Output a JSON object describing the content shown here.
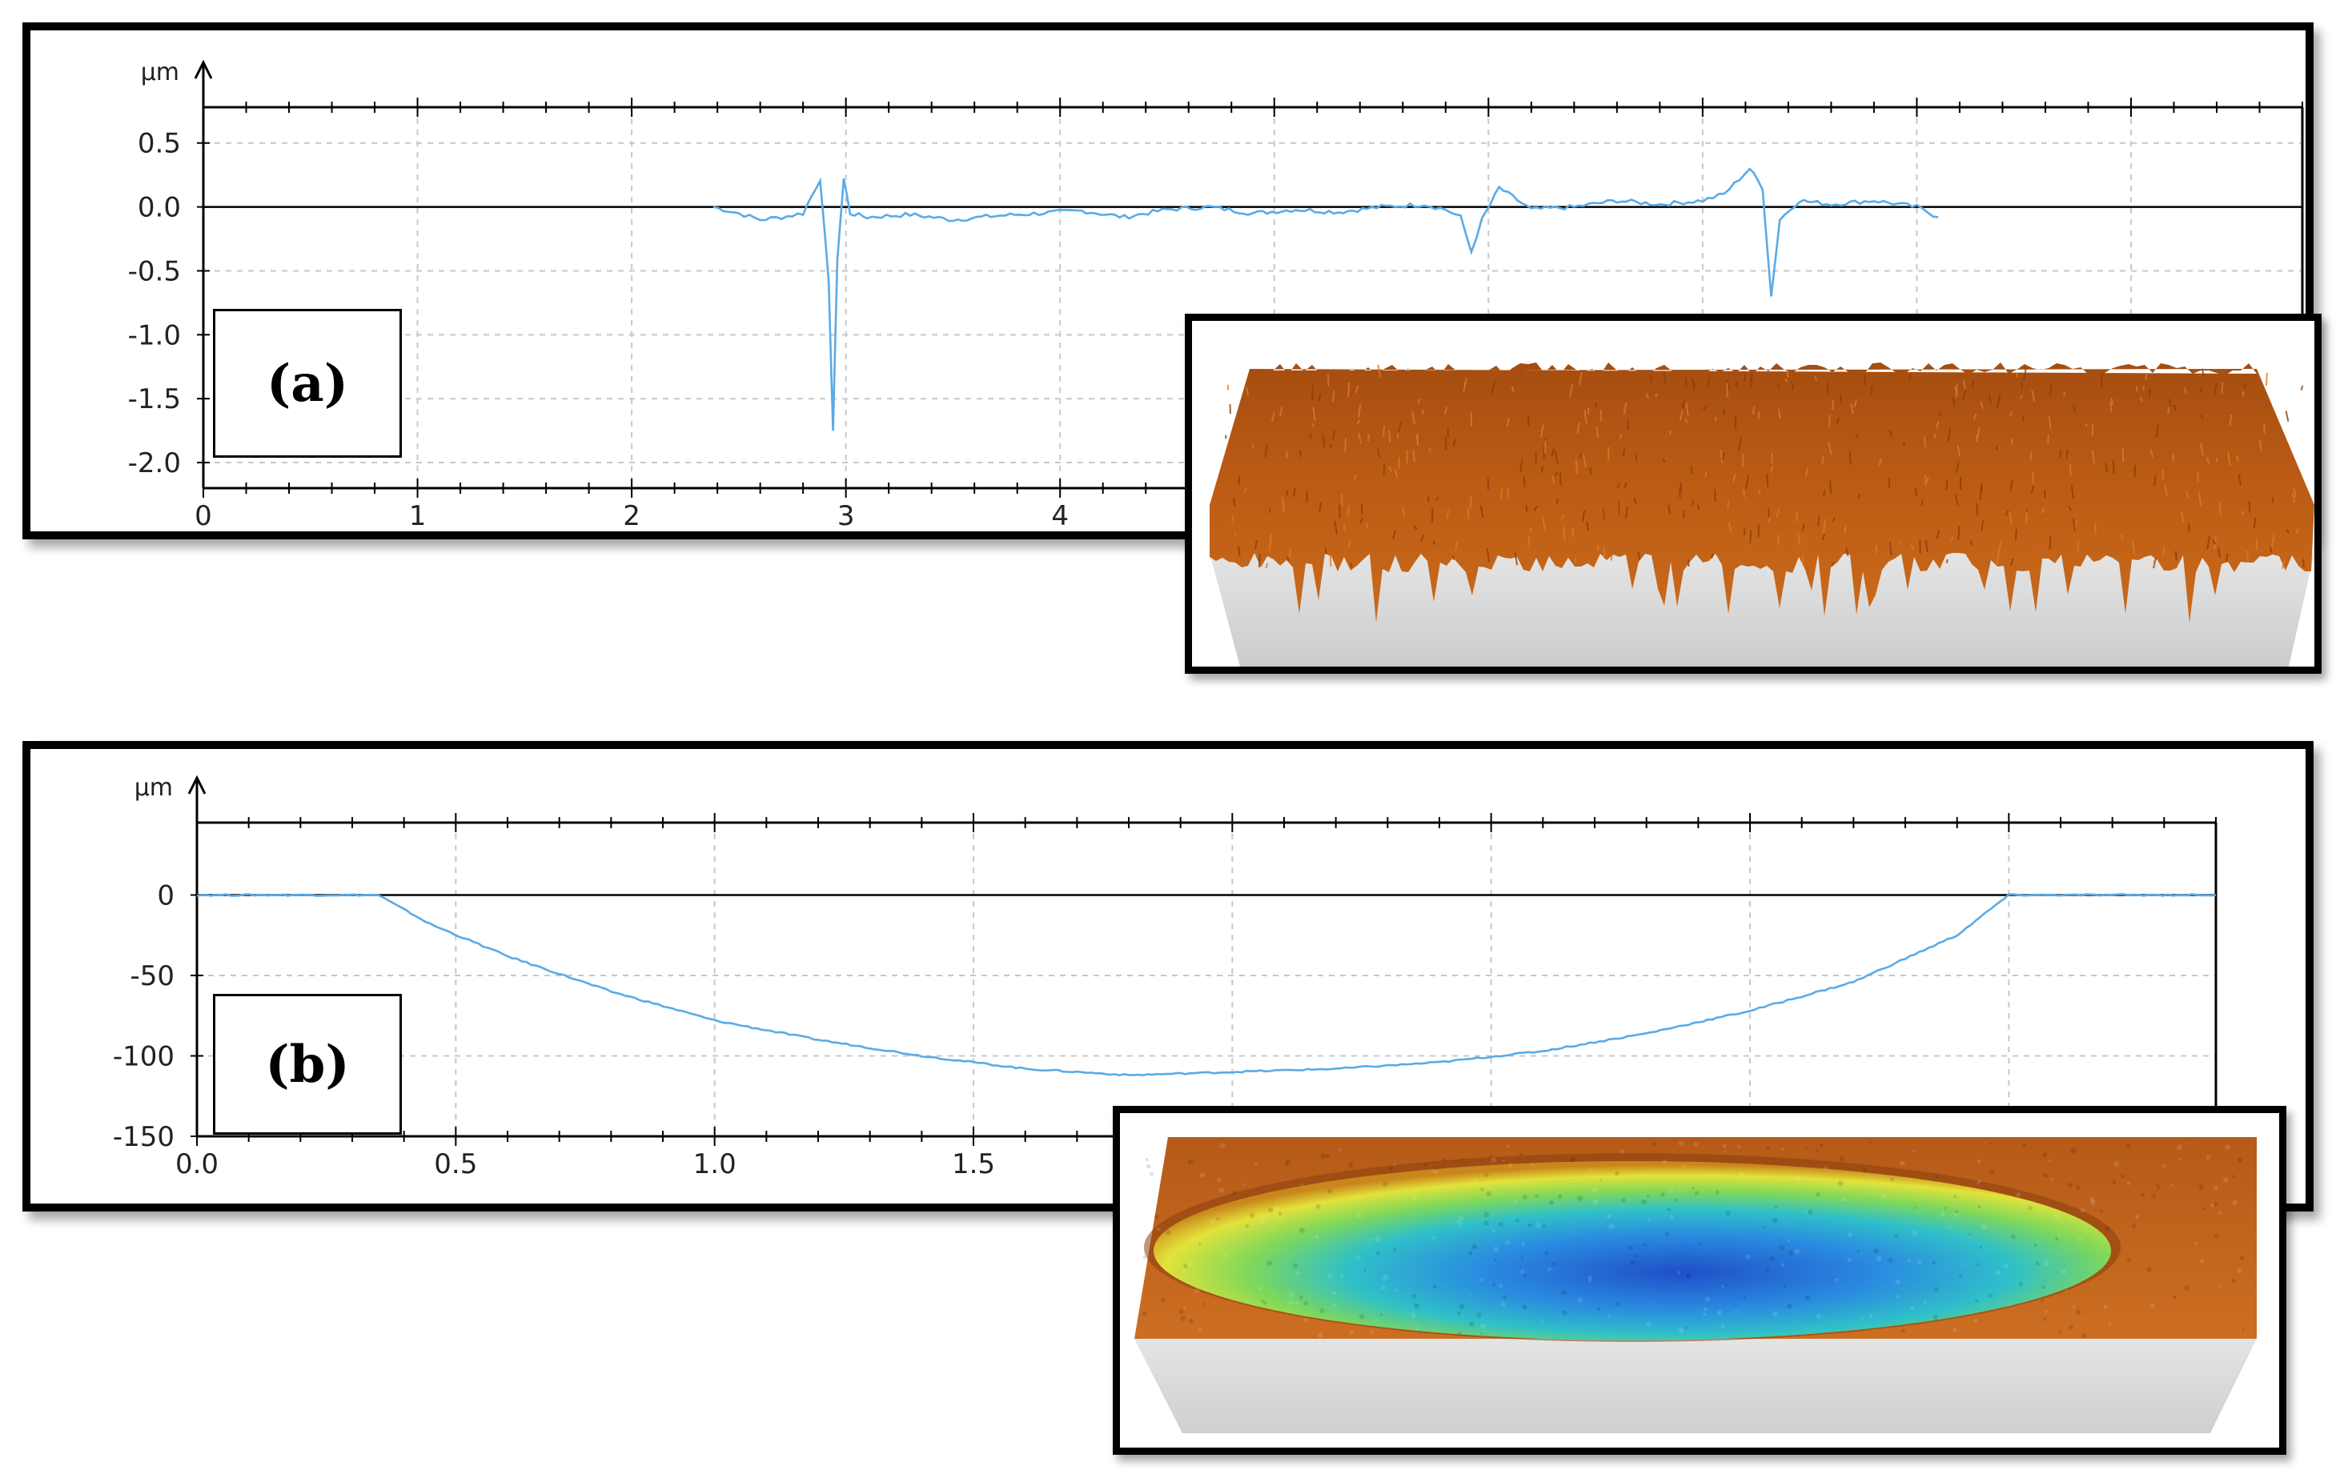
{
  "chart_data": [
    {
      "type": "line",
      "panel_label": "(a)",
      "ylabel": "µm",
      "xlim": [
        0,
        9.8
      ],
      "ylim": [
        -2.2,
        0.78
      ],
      "x_ticks": [
        0,
        1,
        2,
        3,
        4
      ],
      "y_ticks": [
        0.5,
        0.0,
        -0.5,
        -1.0,
        -1.5,
        -2.0
      ],
      "y_tick_labels": [
        "0.5",
        "0.0",
        "-0.5",
        "-1.0",
        "-1.5",
        "-2.0"
      ],
      "grid": true,
      "series_color": "#5aaae6",
      "x": [
        2.38,
        2.5,
        2.6,
        2.7,
        2.8,
        2.88,
        2.92,
        2.94,
        2.96,
        2.99,
        3.02,
        3.1,
        3.3,
        3.5,
        3.7,
        3.9,
        4.1,
        4.3,
        4.5,
        4.7,
        4.9,
        5.1,
        5.3,
        5.5,
        5.7,
        5.8,
        5.87,
        5.92,
        5.97,
        6.05,
        6.2,
        6.4,
        6.6,
        6.8,
        7.0,
        7.1,
        7.22,
        7.28,
        7.32,
        7.36,
        7.45,
        7.6,
        7.8,
        8.0,
        8.1
      ],
      "y": [
        0.0,
        -0.05,
        -0.1,
        -0.08,
        -0.05,
        0.22,
        -0.6,
        -1.75,
        -0.4,
        0.22,
        -0.05,
        -0.08,
        -0.06,
        -0.1,
        -0.07,
        -0.05,
        -0.03,
        -0.08,
        -0.02,
        0.0,
        -0.05,
        -0.02,
        -0.04,
        0.0,
        0.02,
        -0.02,
        -0.08,
        -0.35,
        -0.1,
        0.15,
        -0.02,
        0.0,
        0.05,
        0.02,
        0.05,
        0.1,
        0.3,
        0.15,
        -0.7,
        -0.1,
        0.05,
        0.02,
        0.05,
        0.0,
        -0.08
      ]
    },
    {
      "type": "line",
      "panel_label": "(b)",
      "ylabel": "µm",
      "xlim": [
        0.0,
        3.9
      ],
      "ylim": [
        -150,
        45
      ],
      "x_ticks": [
        0.0,
        0.5,
        1.0,
        1.5
      ],
      "x_tick_labels": [
        "0.0",
        "0.5",
        "1.0",
        "1.5"
      ],
      "y_ticks": [
        0,
        -50,
        -100,
        -150
      ],
      "y_tick_labels": [
        "0",
        "-50",
        "-100",
        "-150"
      ],
      "grid": true,
      "series_color": "#5aaae6",
      "x": [
        0.0,
        0.35,
        0.45,
        0.6,
        0.8,
        1.0,
        1.2,
        1.4,
        1.6,
        1.8,
        2.0,
        2.2,
        2.4,
        2.6,
        2.8,
        3.0,
        3.2,
        3.4,
        3.5,
        3.9
      ],
      "y": [
        0,
        0,
        -18,
        -38,
        -60,
        -78,
        -90,
        -100,
        -108,
        -112,
        -110,
        -108,
        -104,
        -97,
        -86,
        -72,
        -54,
        -25,
        0,
        0
      ]
    }
  ]
}
